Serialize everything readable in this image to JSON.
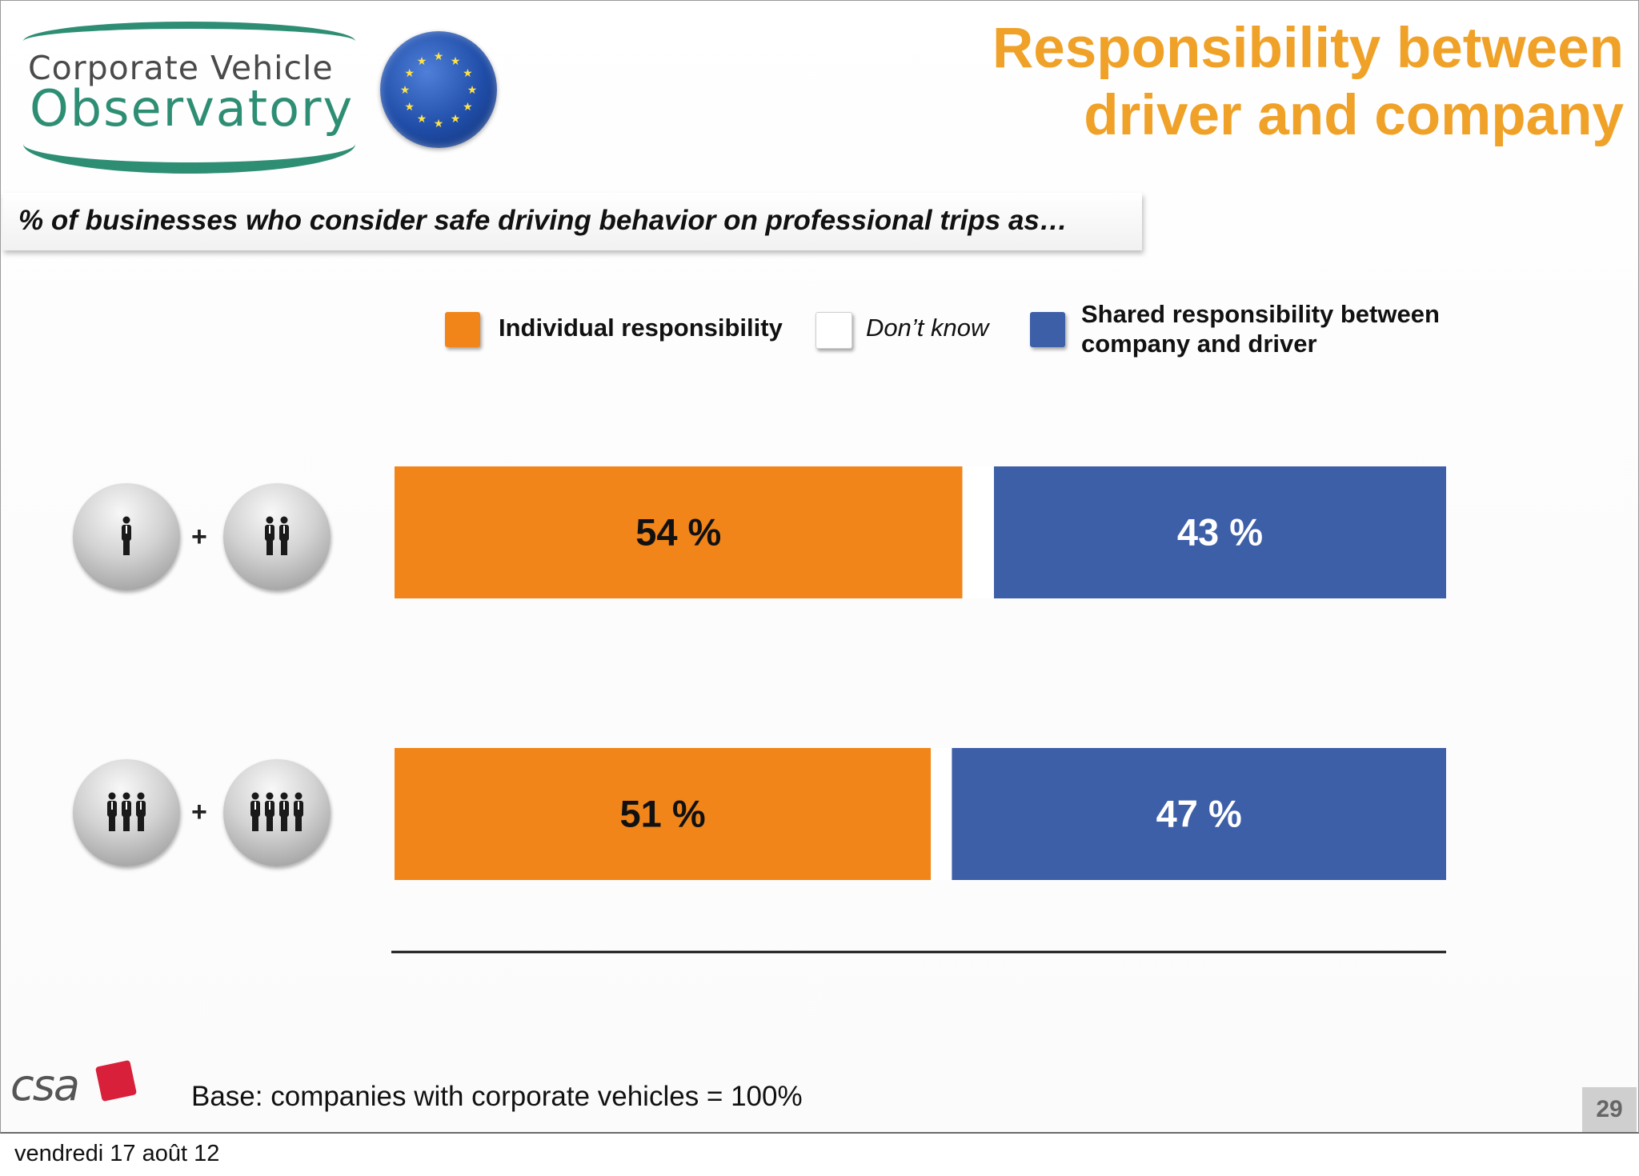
{
  "logo": {
    "line1": "Corporate Vehicle",
    "line2": "Observatory"
  },
  "title": {
    "line1": "Responsibility between",
    "line2": "driver and company"
  },
  "question": "% of businesses who consider safe driving behavior on professional trips as…",
  "legend": [
    {
      "label": "Individual responsibility",
      "color": "#f18519"
    },
    {
      "label": "Don’t know",
      "color": "#ffffff"
    },
    {
      "label": "Shared responsibility between company and driver",
      "color": "#3d5fa8"
    }
  ],
  "colors": {
    "individual": "#f18519",
    "shared": "#3d5fa8",
    "title": "#f0a127",
    "brand_green": "#2e8e74"
  },
  "rows": [
    {
      "icon_left": "one-person-icon",
      "icon_right": "two-people-icon"
    },
    {
      "icon_left": "three-people-icon",
      "icon_right": "four-people-icon"
    }
  ],
  "chart_data": {
    "type": "bar",
    "orientation": "horizontal",
    "stacked": true,
    "categories": [
      "",
      ""
    ],
    "series": [
      {
        "name": "Individual responsibility",
        "values": [
          54,
          51
        ],
        "labels": [
          "54 %",
          "51 %"
        ]
      },
      {
        "name": "Don’t know",
        "values": [
          3,
          2
        ],
        "labels": [
          "",
          ""
        ]
      },
      {
        "name": "Shared responsibility between company and driver",
        "values": [
          43,
          47
        ],
        "labels": [
          "43 %",
          "47 %"
        ]
      }
    ],
    "xlim": [
      0,
      100
    ],
    "grid": false,
    "legend_position": "top"
  },
  "footer": {
    "brand": "csa",
    "base": "Base: companies with corporate vehicles = 100%",
    "page_number": "29",
    "date": "vendredi 17 août 12"
  }
}
